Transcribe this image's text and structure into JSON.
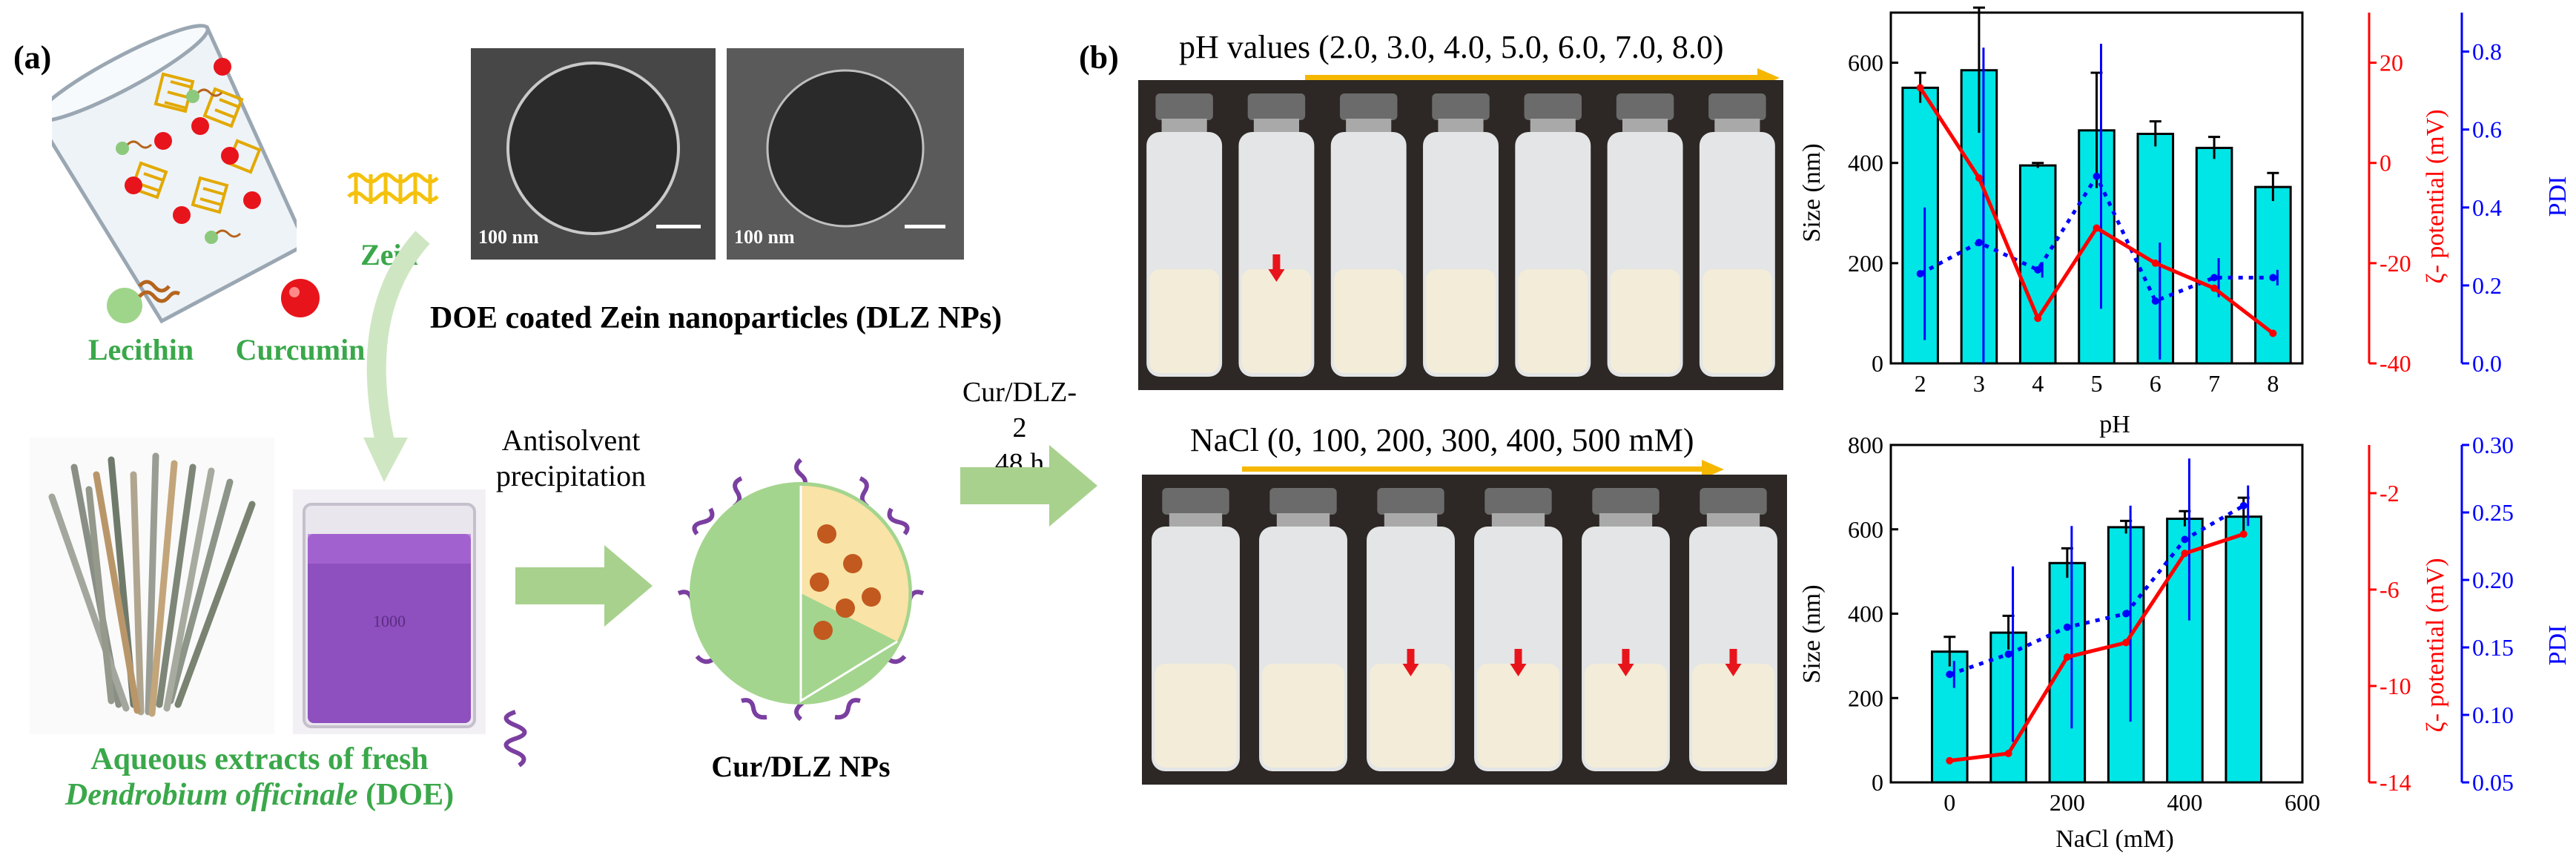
{
  "panel_a": {
    "label": "(a)",
    "zein_label": "Zein",
    "lecithin_label": "Lecithin",
    "curcumin_label": "Curcumin",
    "sem_scale_1": "100 nm",
    "sem_scale_2": "100 nm",
    "sem_caption": "DOE coated Zein nanoparticles (DLZ NPs)",
    "antisolvent_line1": "Antisolvent",
    "antisolvent_line2": "precipitation",
    "extract_caption_line1": "Aqueous extracts of fresh",
    "extract_caption_line2_italic": "Dendrobium officinale",
    "extract_caption_line2_rest": " (DOE)",
    "nps_caption": "Cur/DLZ NPs",
    "beaker_mark": "1000",
    "colors": {
      "green": "#3aa84a",
      "purple": "#7a3fa0",
      "curcumin_red": "#e8141b",
      "zein_yellow": "#f4c20d",
      "arrow_green": "#a9d18e"
    }
  },
  "panel_b": {
    "label": "(b)",
    "cur_dlz_line1": "Cur/DLZ-2",
    "cur_dlz_line2": "48 h",
    "ph_header": "pH values (2.0, 3.0, 4.0, 5.0, 6.0, 7.0, 8.0)",
    "nacl_header": "NaCl (0, 100, 200, 300, 400, 500 mM)",
    "ph_vial_count": 7,
    "nacl_vial_count": 6,
    "colors": {
      "header_arrow": "#f5b700",
      "marker": "#e8141b"
    }
  },
  "chart_data": [
    {
      "type": "bar",
      "x": [
        2,
        3,
        4,
        5,
        6,
        7,
        8
      ],
      "xlabel": "pH",
      "xlim": [
        1.5,
        8.5
      ],
      "series": [
        {
          "axis": "Size (nm)",
          "kind": "bar",
          "values": [
            550,
            585,
            395,
            465,
            458,
            430,
            352
          ],
          "errors": [
            30,
            125,
            5,
            115,
            25,
            22,
            28
          ],
          "color": "#00e5e5"
        },
        {
          "axis": "ζ- potential (mV)",
          "kind": "line",
          "values": [
            15,
            -3,
            -31,
            -13,
            -20,
            -25,
            -34
          ],
          "color": "#ff0000"
        },
        {
          "axis": "PDI",
          "kind": "dotted-line",
          "values": [
            0.23,
            0.31,
            0.24,
            0.48,
            0.16,
            0.22,
            0.22
          ],
          "errors": [
            0.17,
            0.5,
            0.02,
            0.34,
            0.15,
            0.05,
            0.02
          ],
          "color": "#0000ff"
        }
      ],
      "y_left": {
        "label": "Size (nm)",
        "lim": [
          0,
          700
        ],
        "ticks": [
          0,
          200,
          400,
          600
        ]
      },
      "y_right1": {
        "label": "ζ- potential (mV)",
        "lim": [
          -40,
          30
        ],
        "ticks": [
          -40,
          -20,
          0,
          20
        ]
      },
      "y_right2": {
        "label": "PDI",
        "lim": [
          0,
          0.9
        ],
        "ticks": [
          0.0,
          0.2,
          0.4,
          0.6,
          0.8
        ]
      },
      "xticks": [
        2,
        3,
        4,
        5,
        6,
        7,
        8
      ]
    },
    {
      "type": "bar",
      "x": [
        0,
        100,
        200,
        300,
        400,
        500
      ],
      "xlabel": "NaCl (mM)",
      "xlim": [
        -100,
        600
      ],
      "series": [
        {
          "axis": "Size (nm)",
          "kind": "bar",
          "values": [
            310,
            355,
            520,
            605,
            625,
            630
          ],
          "errors": [
            35,
            40,
            35,
            15,
            18,
            45
          ],
          "color": "#00e5e5"
        },
        {
          "axis": "ζ- potential (mV)",
          "kind": "line",
          "values": [
            -13.1,
            -12.8,
            -8.8,
            -8.2,
            -4.5,
            -3.7
          ],
          "color": "#ff0000"
        },
        {
          "axis": "PDI",
          "kind": "dotted-line",
          "values": [
            0.13,
            0.145,
            0.165,
            0.175,
            0.23,
            0.255
          ],
          "errors": [
            0.01,
            0.065,
            0.075,
            0.08,
            0.06,
            0.015
          ],
          "color": "#0000ff"
        }
      ],
      "y_left": {
        "label": "Size (nm)",
        "lim": [
          0,
          800
        ],
        "ticks": [
          0,
          200,
          400,
          600,
          800
        ]
      },
      "y_right1": {
        "label": "ζ- potential (mV)",
        "lim": [
          -14,
          0
        ],
        "ticks": [
          -14,
          -10,
          -6,
          -2
        ]
      },
      "y_right2": {
        "label": "PDI",
        "lim": [
          0.05,
          0.3
        ],
        "ticks": [
          0.05,
          0.1,
          0.15,
          0.2,
          0.25,
          0.3
        ]
      },
      "xticks": [
        0,
        200,
        400,
        600
      ]
    }
  ]
}
